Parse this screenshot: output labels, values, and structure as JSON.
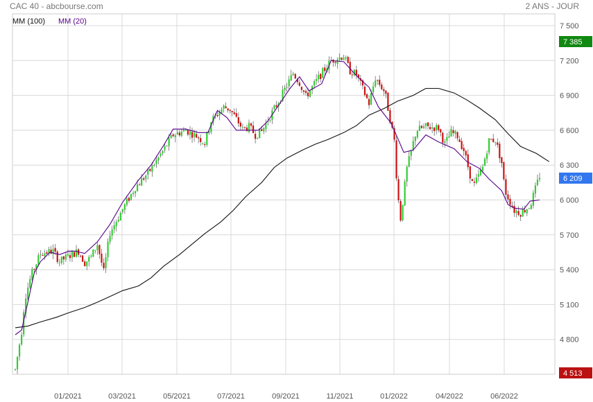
{
  "header": {
    "title": "CAC 40 - abcbourse.com",
    "period": "2 ANS - JOUR"
  },
  "legend": {
    "ma100": "MM (100)",
    "ma20": "MM (20)"
  },
  "colors": {
    "up": "#33cc33",
    "down": "#cc1111",
    "ma100": "#111111",
    "ma20": "#550088",
    "badge_high": "#118811",
    "badge_last": "#3377ee",
    "badge_low": "#bb1111",
    "grid": "#d8d8d8"
  },
  "chart_data": {
    "type": "candlestick",
    "ylim": [
      4450,
      7600
    ],
    "y_ticks": [
      "7 500",
      "7 200",
      "6 900",
      "6 600",
      "6 300",
      "6 000",
      "5 700",
      "5 400",
      "5 100",
      "4 800"
    ],
    "x_ticks": [
      "01/2021",
      "03/2021",
      "05/2021",
      "07/2021",
      "09/2021",
      "11/2021",
      "01/2022",
      "04/2022",
      "06/2022"
    ],
    "badges": {
      "high": "7 385",
      "last": "6 209",
      "low": "4 513"
    },
    "series": [
      {
        "name": "MM (100)",
        "points": [
          [
            0,
            4900
          ],
          [
            4,
            4915
          ],
          [
            8,
            4950
          ],
          [
            13,
            4990
          ],
          [
            17,
            5030
          ],
          [
            22,
            5075
          ],
          [
            26,
            5120
          ],
          [
            30,
            5170
          ],
          [
            34,
            5220
          ],
          [
            39,
            5260
          ],
          [
            43,
            5330
          ],
          [
            47,
            5430
          ],
          [
            52,
            5530
          ],
          [
            56,
            5620
          ],
          [
            60,
            5710
          ],
          [
            65,
            5810
          ],
          [
            69,
            5910
          ],
          [
            73,
            6030
          ],
          [
            78,
            6150
          ],
          [
            82,
            6280
          ],
          [
            86,
            6360
          ],
          [
            91,
            6430
          ],
          [
            95,
            6480
          ],
          [
            99,
            6520
          ],
          [
            104,
            6580
          ],
          [
            108,
            6640
          ],
          [
            112,
            6730
          ],
          [
            117,
            6790
          ],
          [
            121,
            6850
          ],
          [
            126,
            6900
          ],
          [
            130,
            6960
          ],
          [
            134,
            6960
          ],
          [
            139,
            6920
          ],
          [
            143,
            6860
          ],
          [
            147,
            6790
          ],
          [
            152,
            6690
          ],
          [
            156,
            6570
          ],
          [
            160,
            6460
          ],
          [
            165,
            6400
          ],
          [
            169,
            6330
          ]
        ]
      },
      {
        "name": "MM (20)",
        "points": [
          [
            0,
            4840
          ],
          [
            2,
            4880
          ],
          [
            4,
            5120
          ],
          [
            6,
            5370
          ],
          [
            8,
            5470
          ],
          [
            11,
            5550
          ],
          [
            14,
            5530
          ],
          [
            17,
            5560
          ],
          [
            19,
            5560
          ],
          [
            22,
            5540
          ],
          [
            26,
            5640
          ],
          [
            30,
            5790
          ],
          [
            34,
            5980
          ],
          [
            39,
            6170
          ],
          [
            43,
            6300
          ],
          [
            47,
            6470
          ],
          [
            50,
            6610
          ],
          [
            54,
            6610
          ],
          [
            58,
            6580
          ],
          [
            61,
            6580
          ],
          [
            64,
            6770
          ],
          [
            67,
            6710
          ],
          [
            70,
            6600
          ],
          [
            73,
            6600
          ],
          [
            77,
            6600
          ],
          [
            80,
            6680
          ],
          [
            83,
            6800
          ],
          [
            87,
            6960
          ],
          [
            90,
            7060
          ],
          [
            93,
            6940
          ],
          [
            97,
            7000
          ],
          [
            100,
            7200
          ],
          [
            104,
            7190
          ],
          [
            108,
            7070
          ],
          [
            112,
            6970
          ],
          [
            115,
            6800
          ],
          [
            119,
            6660
          ],
          [
            123,
            6410
          ],
          [
            126,
            6430
          ],
          [
            130,
            6560
          ],
          [
            134,
            6500
          ],
          [
            139,
            6440
          ],
          [
            143,
            6330
          ],
          [
            147,
            6270
          ],
          [
            150,
            6180
          ],
          [
            154,
            6080
          ],
          [
            156,
            5960
          ],
          [
            158,
            5930
          ],
          [
            161,
            5920
          ],
          [
            163,
            5990
          ],
          [
            166,
            6000
          ]
        ]
      },
      {
        "name": "ohlc_path",
        "points": [
          [
            0,
            4540
          ],
          [
            2,
            4870
          ],
          [
            3,
            5150
          ],
          [
            5,
            5350
          ],
          [
            8,
            5540
          ],
          [
            12,
            5560
          ],
          [
            14,
            5470
          ],
          [
            17,
            5520
          ],
          [
            20,
            5560
          ],
          [
            22,
            5460
          ],
          [
            24,
            5510
          ],
          [
            26,
            5620
          ],
          [
            28,
            5380
          ],
          [
            30,
            5720
          ],
          [
            34,
            5920
          ],
          [
            38,
            6110
          ],
          [
            42,
            6230
          ],
          [
            46,
            6390
          ],
          [
            50,
            6560
          ],
          [
            54,
            6600
          ],
          [
            58,
            6540
          ],
          [
            60,
            6490
          ],
          [
            62,
            6680
          ],
          [
            66,
            6800
          ],
          [
            68,
            6780
          ],
          [
            72,
            6610
          ],
          [
            74,
            6630
          ],
          [
            76,
            6560
          ],
          [
            78,
            6590
          ],
          [
            80,
            6690
          ],
          [
            84,
            6880
          ],
          [
            88,
            7090
          ],
          [
            90,
            7010
          ],
          [
            92,
            6890
          ],
          [
            96,
            7050
          ],
          [
            100,
            7200
          ],
          [
            104,
            7240
          ],
          [
            106,
            7110
          ],
          [
            108,
            7080
          ],
          [
            112,
            6830
          ],
          [
            114,
            7050
          ],
          [
            117,
            6930
          ],
          [
            120,
            6510
          ],
          [
            121,
            6070
          ],
          [
            122,
            5840
          ],
          [
            124,
            6270
          ],
          [
            127,
            6600
          ],
          [
            130,
            6630
          ],
          [
            134,
            6620
          ],
          [
            136,
            6480
          ],
          [
            138,
            6580
          ],
          [
            140,
            6550
          ],
          [
            142,
            6430
          ],
          [
            145,
            6110
          ],
          [
            148,
            6280
          ],
          [
            150,
            6510
          ],
          [
            152,
            6520
          ],
          [
            154,
            6320
          ],
          [
            155,
            6080
          ],
          [
            158,
            5910
          ],
          [
            160,
            5890
          ],
          [
            163,
            5950
          ],
          [
            166,
            6209
          ]
        ]
      }
    ]
  }
}
